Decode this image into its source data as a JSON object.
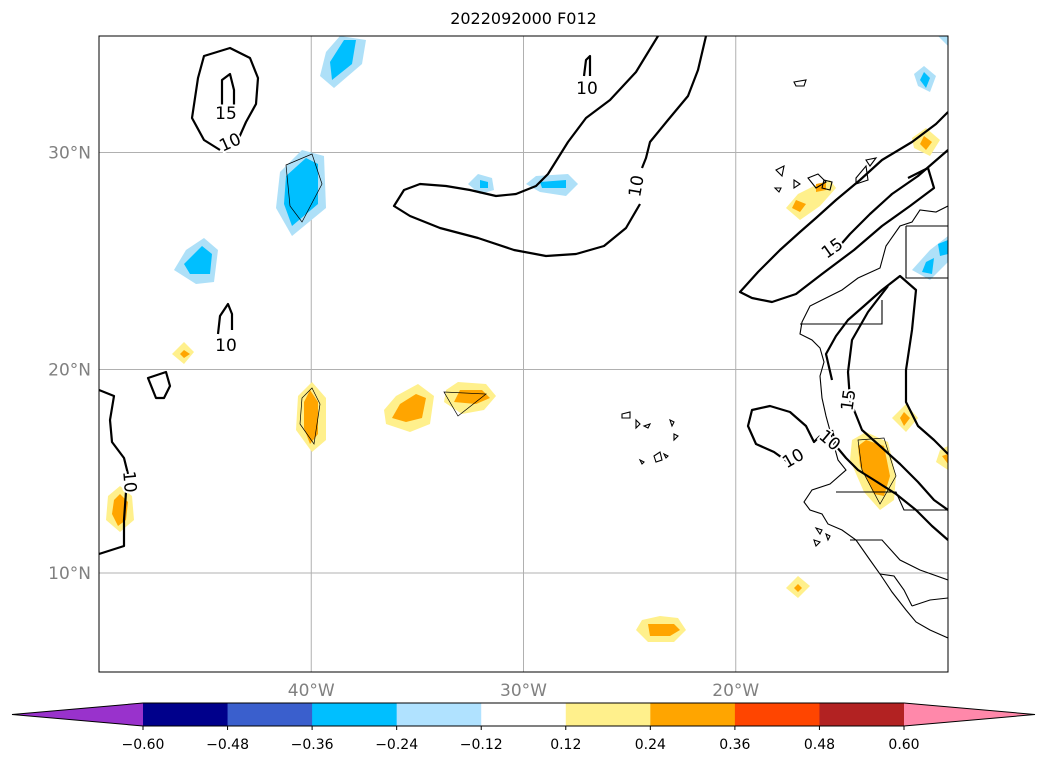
{
  "title": "2022092000 F012",
  "map": {
    "lat_ticks": [
      {
        "value": 10,
        "label": "10°N"
      },
      {
        "value": 20,
        "label": "20°N"
      },
      {
        "value": 30,
        "label": "30°N"
      }
    ],
    "lon_ticks": [
      {
        "value": -40,
        "label": "40°W"
      },
      {
        "value": -30,
        "label": "30°W"
      },
      {
        "value": -20,
        "label": "20°W"
      }
    ],
    "extent": {
      "lon": [
        -50,
        -10
      ],
      "lat": [
        5,
        35
      ]
    },
    "contour_labels": [
      "15",
      "10",
      "10",
      "10",
      "10",
      "15",
      "15",
      "10",
      "10",
      "10"
    ],
    "colors": {
      "grid": "#b0b0b0",
      "pos_light": "#fff08c",
      "pos_mid": "#ffa500",
      "neg_light": "#aee0f8",
      "neg_mid": "#00bfff"
    }
  },
  "colorbar": {
    "boundaries": [
      -0.6,
      -0.48,
      -0.36,
      -0.24,
      -0.12,
      0.12,
      0.24,
      0.36,
      0.48,
      0.6
    ],
    "tick_labels": [
      "−0.60",
      "−0.48",
      "−0.36",
      "−0.24",
      "−0.12",
      "0.12",
      "0.24",
      "0.36",
      "0.48",
      "0.60"
    ],
    "colors": [
      "#9932cc",
      "#00008b",
      "#3a5fcd",
      "#00bfff",
      "#b0e2ff",
      "#ffffff",
      "#fff08c",
      "#ffa500",
      "#ff4500",
      "#b22222",
      "#ff88aa"
    ]
  }
}
